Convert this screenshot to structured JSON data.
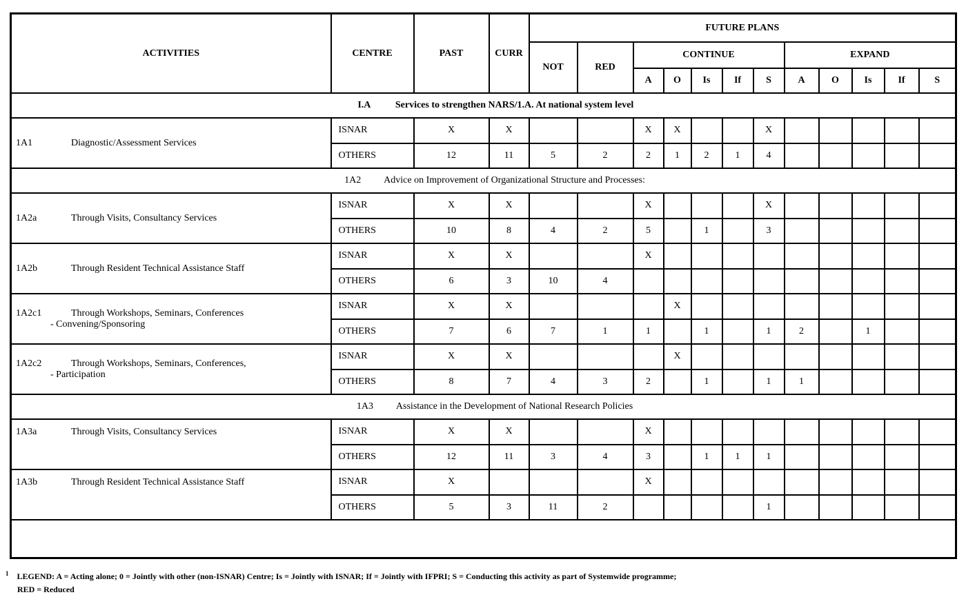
{
  "header": {
    "activities": "ACTIVITIES",
    "centre": "CENTRE",
    "past": "PAST",
    "curr": "CURR",
    "future_plans": "FUTURE PLANS",
    "not": "NOT",
    "red": "RED",
    "continue": "CONTINUE",
    "expand": "EXPAND",
    "sub_cols": [
      "A",
      "O",
      "Is",
      "If",
      "S",
      "A",
      "O",
      "Is",
      "If",
      "S"
    ]
  },
  "sections": [
    {
      "code": "I.A",
      "title": "Services to strengthen NARS/1.A.  At national system level",
      "bold": true,
      "activities": [
        {
          "code": "1A1",
          "lines": [
            "Diagnostic/Assessment Services"
          ],
          "rows": [
            {
              "centre": "ISNAR",
              "cells": [
                "X",
                "X",
                "",
                "",
                "X",
                "X",
                "",
                "",
                "X",
                "",
                "",
                "",
                "",
                ""
              ]
            },
            {
              "centre": "OTHERS",
              "cells": [
                "12",
                "11",
                "5",
                "2",
                "2",
                "1",
                "2",
                "1",
                "4",
                "",
                "",
                "",
                "",
                ""
              ]
            }
          ]
        }
      ]
    },
    {
      "code": "1A2",
      "title": "Advice on Improvement of Organizational Structure and Processes:",
      "bold": false,
      "activities": [
        {
          "code": "1A2a",
          "lines": [
            "Through Visits, Consultancy Services"
          ],
          "rows": [
            {
              "centre": "ISNAR",
              "cells": [
                "X",
                "X",
                "",
                "",
                "X",
                "",
                "",
                "",
                "X",
                "",
                "",
                "",
                "",
                ""
              ]
            },
            {
              "centre": "OTHERS",
              "cells": [
                "10",
                "8",
                "4",
                "2",
                "5",
                "",
                "1",
                "",
                "3",
                "",
                "",
                "",
                "",
                ""
              ]
            }
          ]
        },
        {
          "code": "1A2b",
          "lines": [
            "Through Resident Technical Assistance Staff"
          ],
          "rows": [
            {
              "centre": "ISNAR",
              "cells": [
                "X",
                "X",
                "",
                "",
                "X",
                "",
                "",
                "",
                "",
                "",
                "",
                "",
                "",
                ""
              ]
            },
            {
              "centre": "OTHERS",
              "cells": [
                "6",
                "3",
                "10",
                "4",
                "",
                "",
                "",
                "",
                "",
                "",
                "",
                "",
                "",
                ""
              ]
            }
          ]
        },
        {
          "code": "1A2c1",
          "lines": [
            "Through Workshops, Seminars, Conferences",
            "-    Convening/Sponsoring"
          ],
          "rows": [
            {
              "centre": "ISNAR",
              "cells": [
                "X",
                "X",
                "",
                "",
                "",
                "X",
                "",
                "",
                "",
                "",
                "",
                "",
                "",
                ""
              ]
            },
            {
              "centre": "OTHERS",
              "cells": [
                "7",
                "6",
                "7",
                "1",
                "1",
                "",
                "1",
                "",
                "1",
                "2",
                "",
                "1",
                "",
                ""
              ]
            }
          ]
        },
        {
          "code": "1A2c2",
          "lines": [
            "Through Workshops, Seminars, Conferences,",
            "- Participation"
          ],
          "rows": [
            {
              "centre": "ISNAR",
              "cells": [
                "X",
                "X",
                "",
                "",
                "",
                "X",
                "",
                "",
                "",
                "",
                "",
                "",
                "",
                ""
              ]
            },
            {
              "centre": "OTHERS",
              "cells": [
                "8",
                "7",
                "4",
                "3",
                "2",
                "",
                "1",
                "",
                "1",
                "1",
                "",
                "",
                "",
                ""
              ]
            }
          ]
        }
      ]
    },
    {
      "code": "1A3",
      "title": "Assistance in the Development of National Research Policies",
      "bold": false,
      "activities": [
        {
          "code": "1A3a",
          "lines": [
            "Through Visits, Consultancy Services"
          ],
          "rows": [
            {
              "centre": "ISNAR",
              "cells": [
                "X",
                "X",
                "",
                "",
                "X",
                "",
                "",
                "",
                "",
                "",
                "",
                "",
                "",
                ""
              ]
            },
            {
              "centre": "OTHERS",
              "cells": [
                "12",
                "11",
                "3",
                "4",
                "3",
                "",
                "1",
                "1",
                "1",
                "",
                "",
                "",
                "",
                ""
              ]
            }
          ]
        },
        {
          "code": "1A3b",
          "lines": [
            "Through Resident Technical Assistance Staff"
          ],
          "rows": [
            {
              "centre": "ISNAR",
              "cells": [
                "X",
                "",
                "",
                "",
                "X",
                "",
                "",
                "",
                "",
                "",
                "",
                "",
                "",
                ""
              ]
            },
            {
              "centre": "OTHERS",
              "cells": [
                "5",
                "3",
                "11",
                "2",
                "",
                "",
                "",
                "",
                "1",
                "",
                "",
                "",
                "",
                ""
              ]
            }
          ]
        }
      ]
    }
  ],
  "legend": {
    "marker": "1",
    "line1": "LEGEND: A = Acting alone; 0 = Jointly with other (non-ISNAR) Centre; Is = Jointly with ISNAR; If = Jointly with IFPRI; S = Conducting this activity as part of Systemwide programme;",
    "line2": "RED = Reduced"
  }
}
